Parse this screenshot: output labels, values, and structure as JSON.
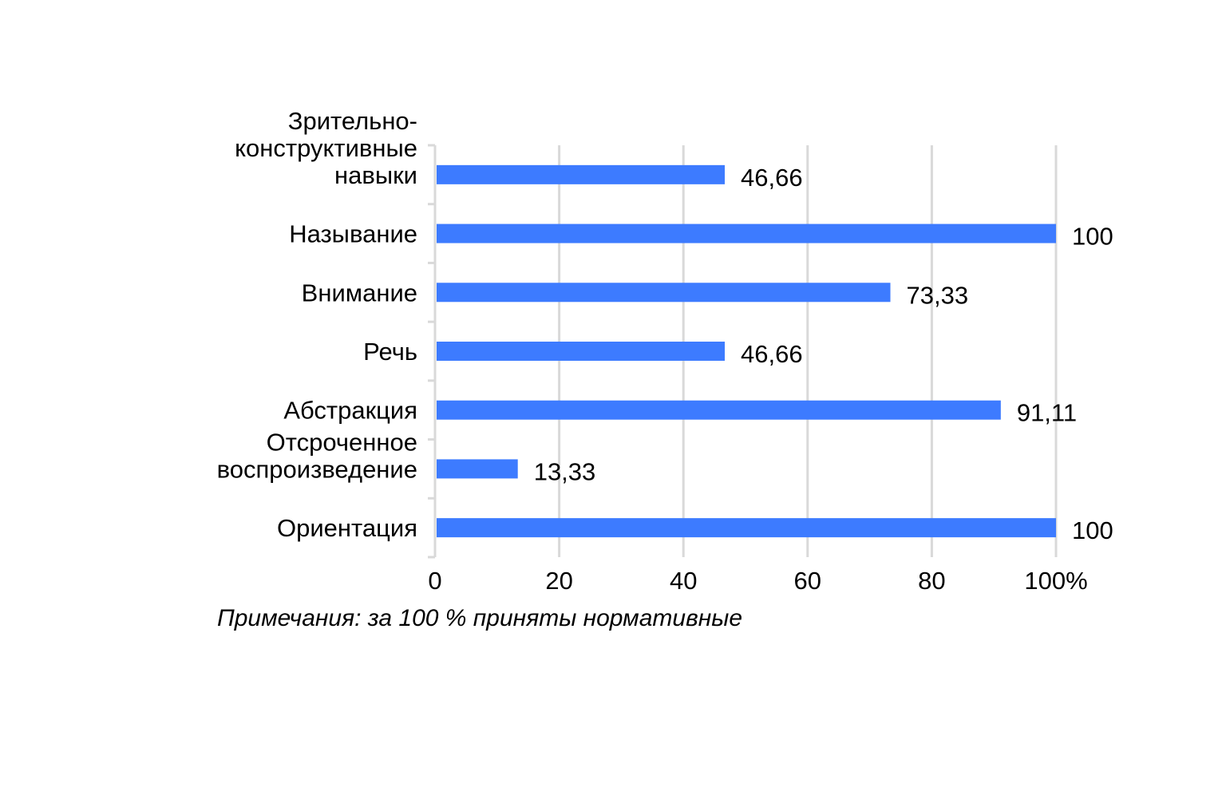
{
  "chart_data": {
    "type": "bar",
    "orientation": "horizontal",
    "categories": [
      [
        "Зрительно-",
        "конструктивные",
        "навыки"
      ],
      [
        "Называние"
      ],
      [
        "Внимание"
      ],
      [
        "Речь"
      ],
      [
        "Абстракция"
      ],
      [
        "Отсроченное",
        "воспроизведение"
      ],
      [
        "Ориентация"
      ]
    ],
    "values": [
      46.66,
      100,
      73.33,
      46.66,
      91.11,
      13.33,
      100
    ],
    "data_labels": [
      "46,66",
      "100",
      "73,33",
      "46,66",
      "91,11",
      "13,33",
      "100"
    ],
    "xlim": [
      0,
      100
    ],
    "x_ticks": [
      0,
      20,
      40,
      60,
      80,
      100
    ],
    "x_tick_labels": [
      "0",
      "20",
      "40",
      "60",
      "80",
      "100%"
    ],
    "grid": true,
    "bar_color": "#3d7bff",
    "grid_color": "#d9d9d9"
  },
  "note": "Примечания: за 100 % приняты нормативные"
}
